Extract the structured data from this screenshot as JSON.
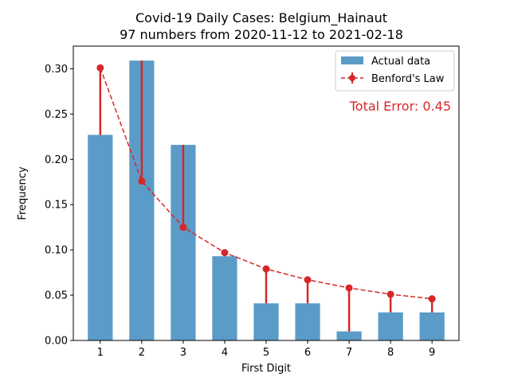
{
  "chart_data": {
    "type": "bar",
    "title": "Covid-19 Daily Cases: Belgium_Hainaut",
    "subtitle": "97 numbers from 2020-11-12 to 2021-02-18",
    "xlabel": "First Digit",
    "ylabel": "Frequency",
    "categories": [
      "1",
      "2",
      "3",
      "4",
      "5",
      "6",
      "7",
      "8",
      "9"
    ],
    "x": [
      1,
      2,
      3,
      4,
      5,
      6,
      7,
      8,
      9
    ],
    "ylim": [
      0,
      0.325
    ],
    "yticks": [
      0.0,
      0.05,
      0.1,
      0.15,
      0.2,
      0.25,
      0.3
    ],
    "ytick_labels": [
      "0.00",
      "0.05",
      "0.10",
      "0.15",
      "0.20",
      "0.25",
      "0.30"
    ],
    "series": [
      {
        "name": "Actual data",
        "kind": "bar",
        "color": "#5b9bc8",
        "values": [
          0.227,
          0.309,
          0.216,
          0.093,
          0.041,
          0.041,
          0.01,
          0.031,
          0.031
        ]
      },
      {
        "name": "Benford's Law",
        "kind": "line-dashed-markers",
        "color": "#d62728",
        "values": [
          0.301,
          0.176,
          0.125,
          0.097,
          0.079,
          0.067,
          0.058,
          0.051,
          0.046
        ]
      }
    ],
    "annotation": "Total Error: 0.45",
    "annotation_color": "#d62728",
    "legend_position": "top-right",
    "grid": false
  }
}
